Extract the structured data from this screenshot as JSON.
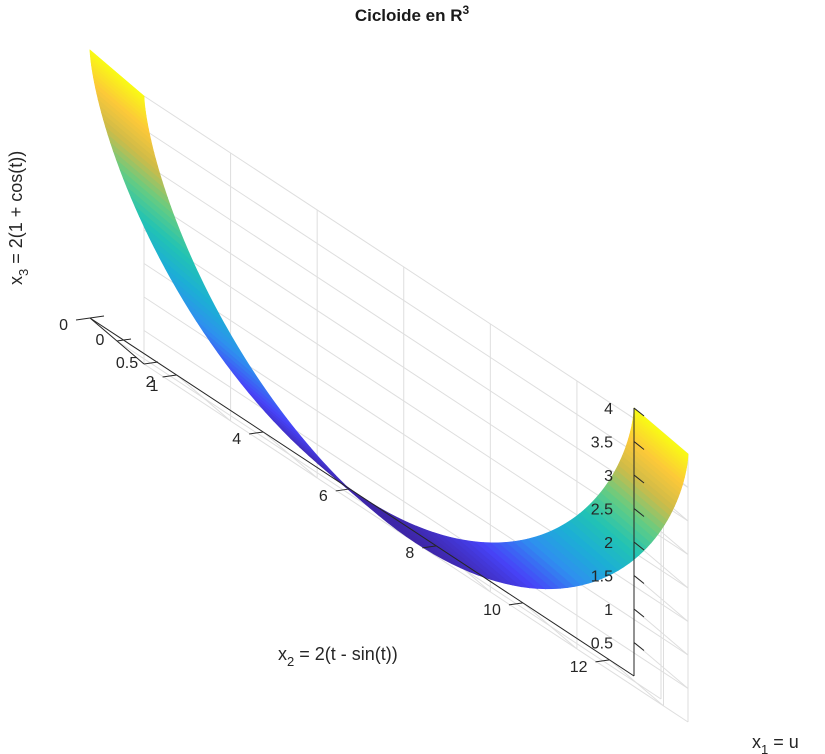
{
  "chart_data": {
    "type": "surface",
    "title": "Cicloide  en  R",
    "title_superscript": "3",
    "x1_label": {
      "base": "x",
      "sub": "1",
      "rest": "  =  u"
    },
    "x2_label": {
      "base": "x",
      "sub": "2",
      "rest": "  =  2(t  -  sin(t))"
    },
    "x3_label": {
      "base": "x",
      "sub": "3",
      "rest": "  =  2(1  +  cos(t))"
    },
    "x1_range": [
      0,
      1
    ],
    "x2_range": [
      0,
      12.566
    ],
    "x3_range": [
      0,
      4
    ],
    "x1_ticks": [
      "0",
      "0.5",
      "1"
    ],
    "x2_ticks": [
      "0",
      "2",
      "4",
      "6",
      "8",
      "10",
      "12"
    ],
    "x3_ticks": [
      "0.5",
      "1",
      "1.5",
      "2",
      "2.5",
      "3",
      "3.5",
      "4"
    ],
    "parameter": "t",
    "t_range": [
      0,
      6.2832
    ],
    "u_range": [
      0,
      1
    ],
    "colormap": "parula",
    "colormap_stops": [
      "#3e26a8",
      "#4743f8",
      "#2f8fef",
      "#1caed6",
      "#22c3b3",
      "#64cc83",
      "#ccbb4a",
      "#fcc839",
      "#f9fb15"
    ],
    "grid": true
  }
}
